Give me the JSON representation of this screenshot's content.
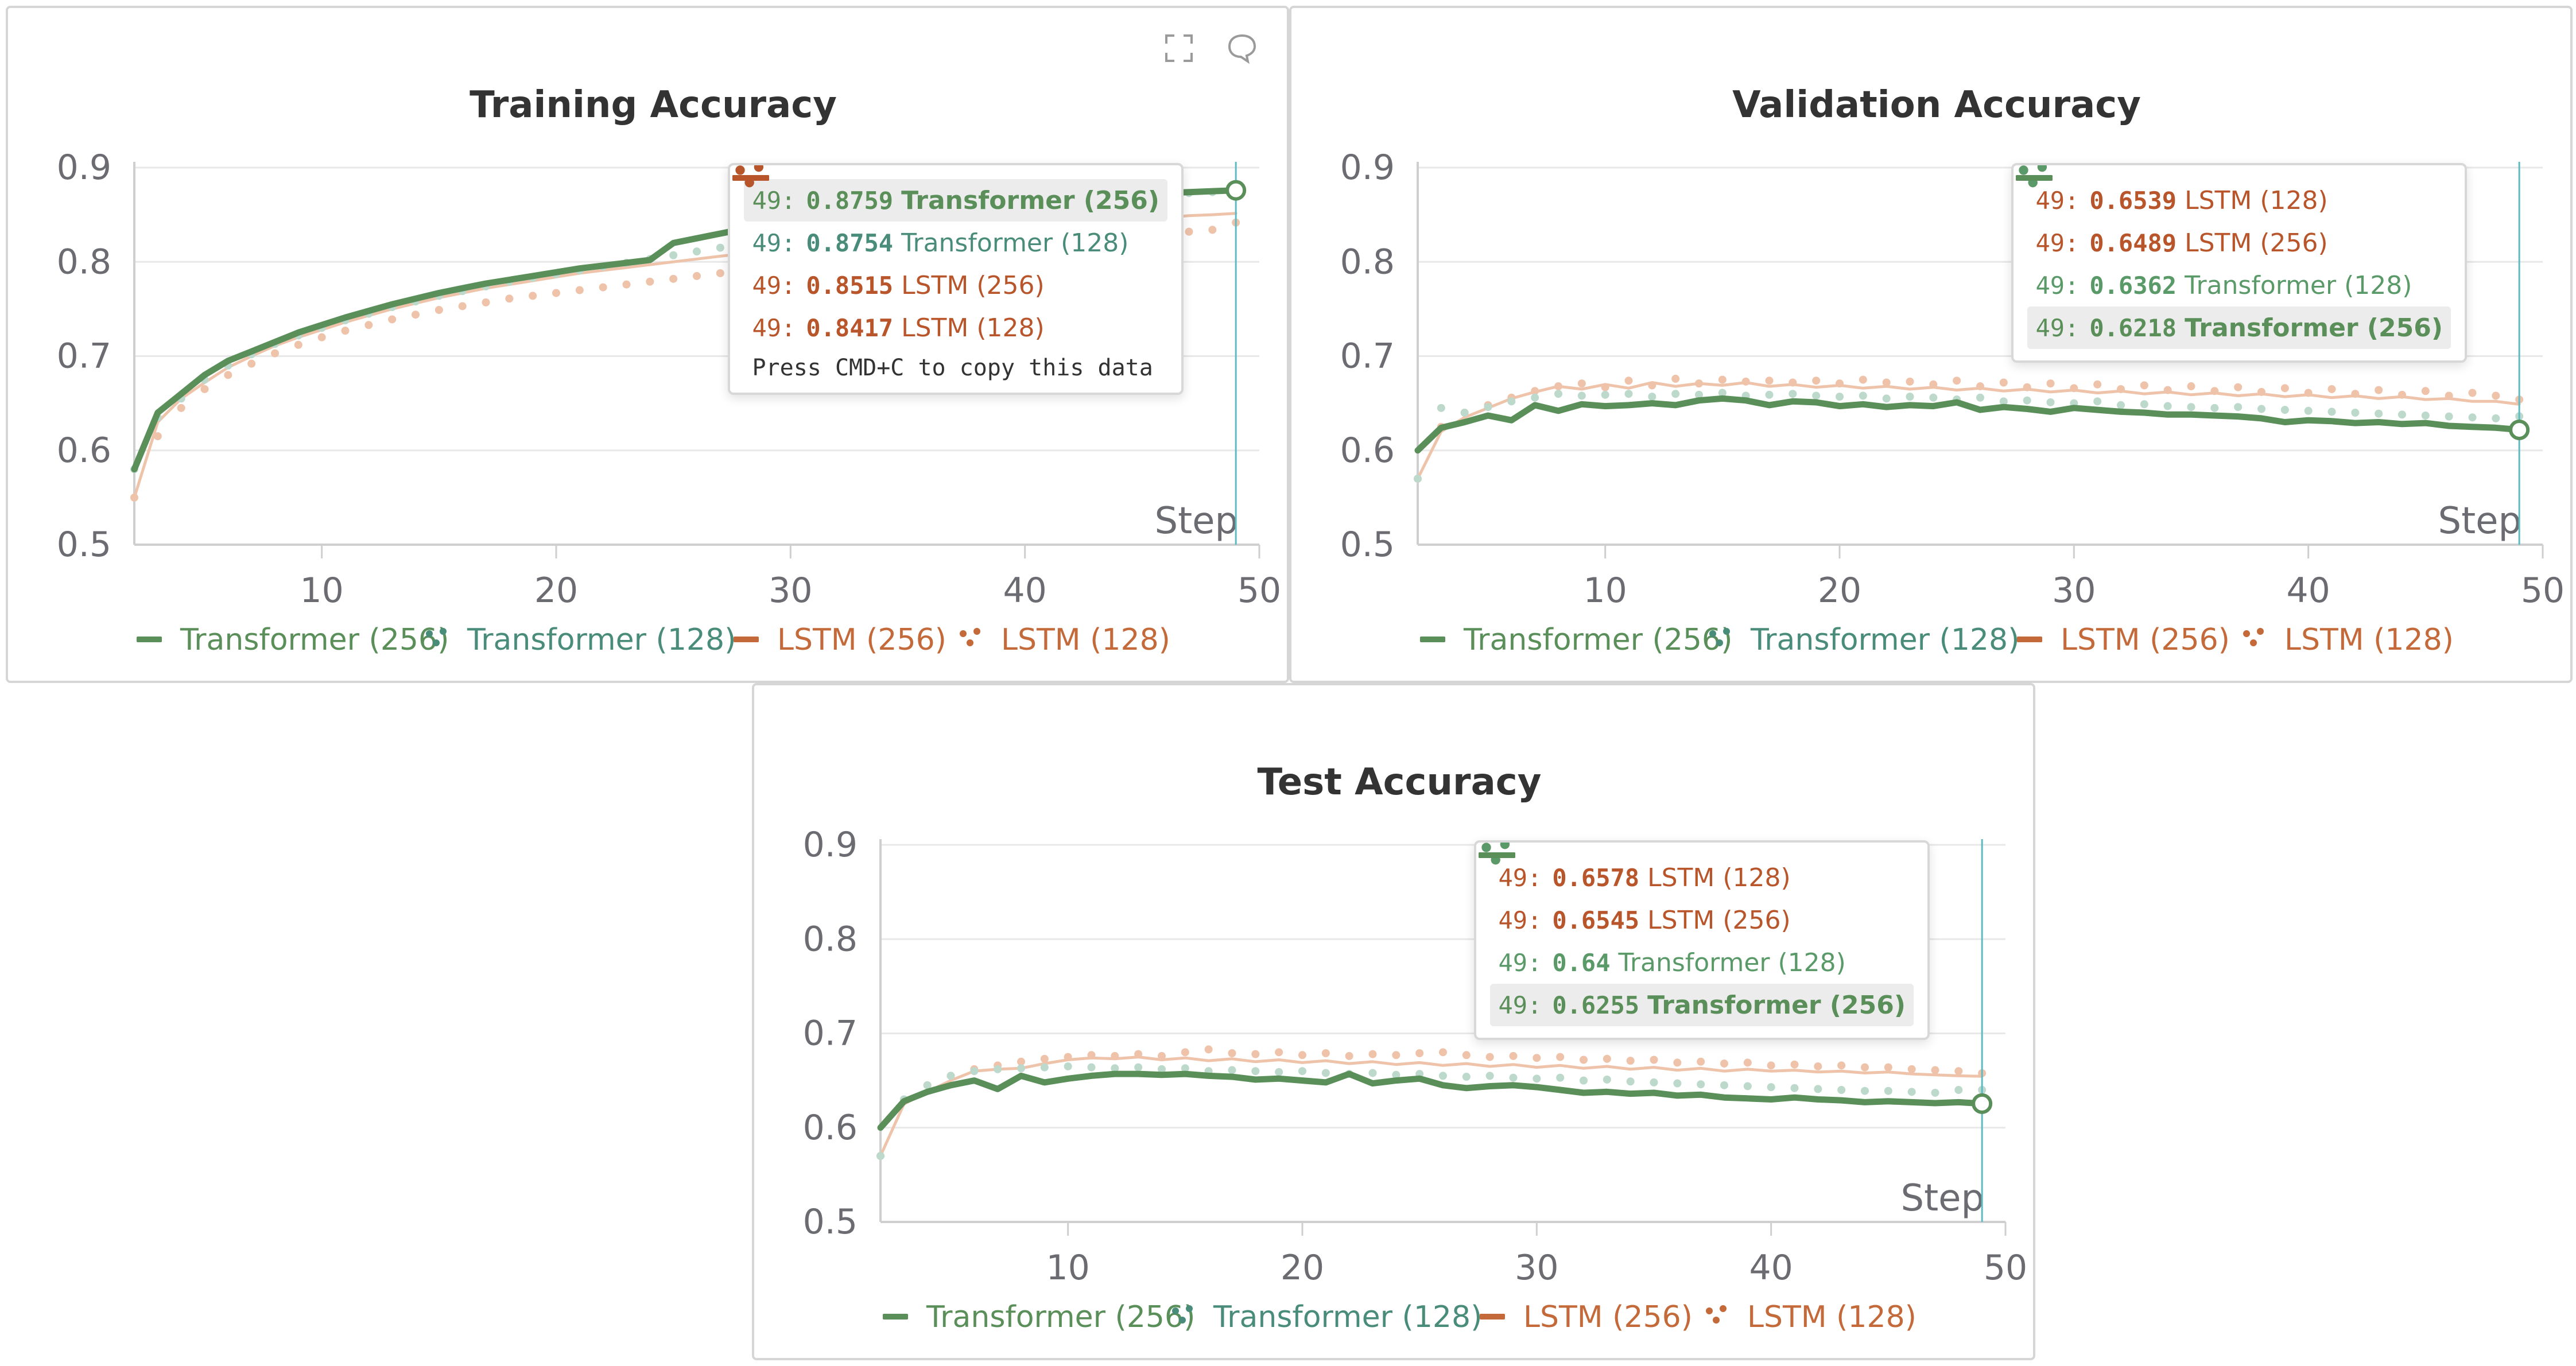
{
  "legend": [
    "Transformer (256)",
    "Transformer (128)",
    "LSTM (256)",
    "LSTM (128)"
  ],
  "tooltip_hint": "Press CMD+C to copy this data",
  "colors": {
    "transformer_256": "#5a8f5a",
    "transformer_128_train": "#4a8c7a",
    "transformer_128": "#5a9a68",
    "lstm_256": "#b8552a",
    "lstm_128": "#c46a3a",
    "transformer_256_faded": "#b9d3b9",
    "transformer_128_faded": "#bcd9cc",
    "lstm_faded": "#eec3aa",
    "step_line": "#5bbcc4"
  },
  "icons": [
    "fullscreen-icon",
    "comment-icon"
  ],
  "chart_data": [
    {
      "type": "line",
      "title": "Training Accuracy",
      "xlabel": "Step",
      "ylabel": "",
      "xlim": [
        2,
        50
      ],
      "ylim": [
        0.5,
        0.9
      ],
      "xticks": [
        "10",
        "20",
        "30",
        "40",
        "50"
      ],
      "yticks": [
        "0.5",
        "0.6",
        "0.7",
        "0.8",
        "0.9"
      ],
      "grid": true,
      "legend_position": "bottom",
      "hover_step": 49,
      "series": [
        {
          "name": "Transformer (256)",
          "style": "line",
          "values": [
            0.58,
            0.64,
            0.66,
            0.68,
            0.695,
            0.705,
            0.715,
            0.725,
            0.733,
            0.741,
            0.748,
            0.755,
            0.761,
            0.767,
            0.772,
            0.777,
            0.781,
            0.785,
            0.789,
            0.793,
            0.796,
            0.799,
            0.802,
            0.82,
            0.825,
            0.83,
            0.835,
            0.84,
            0.845,
            0.85,
            0.853,
            0.856,
            0.858,
            0.86,
            0.862,
            0.863,
            0.865,
            0.866,
            0.867,
            0.868,
            0.869,
            0.87,
            0.871,
            0.872,
            0.873,
            0.874,
            0.875,
            0.8759
          ]
        },
        {
          "name": "Transformer (128)",
          "style": "dotted",
          "values": [
            0.58,
            0.635,
            0.655,
            0.675,
            0.69,
            0.702,
            0.713,
            0.722,
            0.73,
            0.738,
            0.745,
            0.752,
            0.758,
            0.764,
            0.769,
            0.774,
            0.779,
            0.783,
            0.787,
            0.791,
            0.795,
            0.799,
            0.803,
            0.807,
            0.811,
            0.815,
            0.819,
            0.823,
            0.827,
            0.831,
            0.835,
            0.839,
            0.843,
            0.846,
            0.849,
            0.852,
            0.855,
            0.858,
            0.861,
            0.864,
            0.866,
            0.868,
            0.87,
            0.871,
            0.872,
            0.873,
            0.874,
            0.8754
          ]
        },
        {
          "name": "LSTM (256)",
          "style": "line",
          "values": [
            0.55,
            0.63,
            0.655,
            0.672,
            0.688,
            0.7,
            0.711,
            0.72,
            0.728,
            0.736,
            0.743,
            0.75,
            0.756,
            0.762,
            0.767,
            0.772,
            0.776,
            0.78,
            0.784,
            0.788,
            0.791,
            0.794,
            0.797,
            0.8,
            0.803,
            0.806,
            0.809,
            0.812,
            0.815,
            0.817,
            0.819,
            0.821,
            0.823,
            0.825,
            0.827,
            0.829,
            0.831,
            0.833,
            0.835,
            0.837,
            0.839,
            0.841,
            0.843,
            0.845,
            0.847,
            0.849,
            0.85,
            0.8515
          ]
        },
        {
          "name": "LSTM (128)",
          "style": "dotted",
          "values": [
            0.55,
            0.615,
            0.645,
            0.665,
            0.68,
            0.692,
            0.703,
            0.712,
            0.72,
            0.727,
            0.733,
            0.739,
            0.744,
            0.749,
            0.753,
            0.757,
            0.761,
            0.764,
            0.767,
            0.77,
            0.773,
            0.776,
            0.779,
            0.782,
            0.785,
            0.788,
            0.791,
            0.794,
            0.797,
            0.8,
            0.802,
            0.804,
            0.806,
            0.808,
            0.81,
            0.812,
            0.814,
            0.816,
            0.818,
            0.82,
            0.822,
            0.824,
            0.826,
            0.828,
            0.83,
            0.832,
            0.834,
            0.8417
          ]
        }
      ],
      "tooltip": {
        "rows": [
          {
            "series": "Transformer (256)",
            "step": "49",
            "value": "0.8759",
            "highlight": true
          },
          {
            "series": "Transformer (128)",
            "step": "49",
            "value": "0.8754",
            "highlight": false
          },
          {
            "series": "LSTM (256)",
            "step": "49",
            "value": "0.8515",
            "highlight": false
          },
          {
            "series": "LSTM (128)",
            "step": "49",
            "value": "0.8417",
            "highlight": false
          }
        ],
        "show_hint": true
      }
    },
    {
      "type": "line",
      "title": "Validation Accuracy",
      "xlabel": "Step",
      "ylabel": "",
      "xlim": [
        2,
        50
      ],
      "ylim": [
        0.5,
        0.9
      ],
      "xticks": [
        "10",
        "20",
        "30",
        "40",
        "50"
      ],
      "yticks": [
        "0.5",
        "0.6",
        "0.7",
        "0.8",
        "0.9"
      ],
      "grid": true,
      "legend_position": "bottom",
      "hover_step": 49,
      "series": [
        {
          "name": "Transformer (256)",
          "style": "line",
          "values": [
            0.6,
            0.624,
            0.63,
            0.637,
            0.632,
            0.648,
            0.642,
            0.649,
            0.647,
            0.648,
            0.65,
            0.648,
            0.653,
            0.655,
            0.653,
            0.648,
            0.652,
            0.651,
            0.647,
            0.649,
            0.646,
            0.648,
            0.647,
            0.651,
            0.643,
            0.646,
            0.644,
            0.641,
            0.645,
            0.643,
            0.641,
            0.64,
            0.638,
            0.638,
            0.637,
            0.636,
            0.634,
            0.63,
            0.632,
            0.631,
            0.629,
            0.63,
            0.628,
            0.629,
            0.626,
            0.625,
            0.624,
            0.6218
          ]
        },
        {
          "name": "Transformer (128)",
          "style": "dotted",
          "values": [
            0.57,
            0.645,
            0.64,
            0.646,
            0.652,
            0.656,
            0.66,
            0.658,
            0.659,
            0.66,
            0.657,
            0.66,
            0.659,
            0.661,
            0.658,
            0.659,
            0.66,
            0.658,
            0.657,
            0.658,
            0.655,
            0.657,
            0.656,
            0.654,
            0.656,
            0.652,
            0.653,
            0.651,
            0.65,
            0.652,
            0.648,
            0.649,
            0.647,
            0.646,
            0.645,
            0.646,
            0.644,
            0.643,
            0.642,
            0.641,
            0.64,
            0.639,
            0.638,
            0.637,
            0.636,
            0.635,
            0.634,
            0.6362
          ]
        },
        {
          "name": "LSTM (256)",
          "style": "line",
          "values": [
            0.57,
            0.62,
            0.635,
            0.645,
            0.655,
            0.662,
            0.668,
            0.665,
            0.67,
            0.666,
            0.672,
            0.668,
            0.671,
            0.669,
            0.672,
            0.668,
            0.67,
            0.667,
            0.669,
            0.666,
            0.668,
            0.665,
            0.667,
            0.664,
            0.666,
            0.663,
            0.665,
            0.662,
            0.664,
            0.661,
            0.663,
            0.66,
            0.662,
            0.659,
            0.661,
            0.658,
            0.66,
            0.657,
            0.659,
            0.656,
            0.658,
            0.655,
            0.657,
            0.654,
            0.655,
            0.652,
            0.652,
            0.6489
          ]
        },
        {
          "name": "LSTM (128)",
          "style": "dotted",
          "values": [
            0.57,
            0.625,
            0.64,
            0.648,
            0.656,
            0.663,
            0.668,
            0.671,
            0.667,
            0.674,
            0.669,
            0.676,
            0.671,
            0.675,
            0.673,
            0.674,
            0.672,
            0.674,
            0.671,
            0.675,
            0.672,
            0.673,
            0.67,
            0.674,
            0.668,
            0.672,
            0.667,
            0.671,
            0.666,
            0.67,
            0.665,
            0.669,
            0.664,
            0.668,
            0.663,
            0.667,
            0.662,
            0.666,
            0.661,
            0.665,
            0.66,
            0.664,
            0.659,
            0.663,
            0.658,
            0.661,
            0.658,
            0.6539
          ]
        }
      ],
      "tooltip": {
        "rows": [
          {
            "series": "LSTM (128)",
            "step": "49",
            "value": "0.6539",
            "highlight": false
          },
          {
            "series": "LSTM (256)",
            "step": "49",
            "value": "0.6489",
            "highlight": false
          },
          {
            "series": "Transformer (128)",
            "step": "49",
            "value": "0.6362",
            "highlight": false
          },
          {
            "series": "Transformer (256)",
            "step": "49",
            "value": "0.6218",
            "highlight": true
          }
        ],
        "show_hint": false
      }
    },
    {
      "type": "line",
      "title": "Test Accuracy",
      "xlabel": "Step",
      "ylabel": "",
      "xlim": [
        2,
        50
      ],
      "ylim": [
        0.5,
        0.9
      ],
      "xticks": [
        "10",
        "20",
        "30",
        "40",
        "50"
      ],
      "yticks": [
        "0.5",
        "0.6",
        "0.7",
        "0.8",
        "0.9"
      ],
      "grid": true,
      "legend_position": "bottom",
      "hover_step": 49,
      "series": [
        {
          "name": "Transformer (256)",
          "style": "line",
          "values": [
            0.6,
            0.628,
            0.638,
            0.645,
            0.65,
            0.641,
            0.655,
            0.648,
            0.652,
            0.655,
            0.657,
            0.657,
            0.656,
            0.657,
            0.655,
            0.654,
            0.651,
            0.652,
            0.65,
            0.648,
            0.657,
            0.647,
            0.65,
            0.652,
            0.645,
            0.642,
            0.644,
            0.645,
            0.643,
            0.64,
            0.637,
            0.638,
            0.636,
            0.637,
            0.634,
            0.635,
            0.632,
            0.631,
            0.63,
            0.632,
            0.63,
            0.629,
            0.627,
            0.628,
            0.627,
            0.626,
            0.627,
            0.6255
          ]
        },
        {
          "name": "Transformer (128)",
          "style": "dotted",
          "values": [
            0.57,
            0.63,
            0.645,
            0.655,
            0.66,
            0.662,
            0.663,
            0.664,
            0.665,
            0.664,
            0.663,
            0.664,
            0.662,
            0.663,
            0.66,
            0.661,
            0.66,
            0.659,
            0.66,
            0.658,
            0.657,
            0.658,
            0.656,
            0.657,
            0.655,
            0.654,
            0.655,
            0.653,
            0.652,
            0.653,
            0.65,
            0.651,
            0.649,
            0.648,
            0.647,
            0.646,
            0.645,
            0.644,
            0.643,
            0.642,
            0.641,
            0.64,
            0.639,
            0.639,
            0.638,
            0.637,
            0.64,
            0.64
          ]
        },
        {
          "name": "LSTM (256)",
          "style": "line",
          "values": [
            0.57,
            0.625,
            0.638,
            0.65,
            0.66,
            0.662,
            0.663,
            0.668,
            0.672,
            0.674,
            0.673,
            0.675,
            0.672,
            0.674,
            0.671,
            0.673,
            0.67,
            0.672,
            0.669,
            0.671,
            0.668,
            0.67,
            0.667,
            0.669,
            0.666,
            0.668,
            0.665,
            0.667,
            0.664,
            0.666,
            0.663,
            0.665,
            0.662,
            0.664,
            0.661,
            0.663,
            0.66,
            0.662,
            0.66,
            0.661,
            0.659,
            0.66,
            0.658,
            0.659,
            0.657,
            0.656,
            0.655,
            0.6545
          ]
        },
        {
          "name": "LSTM (128)",
          "style": "dotted",
          "values": [
            0.57,
            0.628,
            0.645,
            0.655,
            0.662,
            0.666,
            0.67,
            0.673,
            0.675,
            0.677,
            0.676,
            0.678,
            0.676,
            0.68,
            0.683,
            0.679,
            0.678,
            0.68,
            0.677,
            0.679,
            0.676,
            0.678,
            0.677,
            0.679,
            0.68,
            0.677,
            0.675,
            0.676,
            0.674,
            0.675,
            0.672,
            0.673,
            0.671,
            0.672,
            0.669,
            0.67,
            0.668,
            0.669,
            0.666,
            0.667,
            0.665,
            0.666,
            0.664,
            0.664,
            0.662,
            0.661,
            0.66,
            0.6578
          ]
        }
      ],
      "tooltip": {
        "rows": [
          {
            "series": "LSTM (128)",
            "step": "49",
            "value": "0.6578",
            "highlight": false
          },
          {
            "series": "LSTM (256)",
            "step": "49",
            "value": "0.6545",
            "highlight": false
          },
          {
            "series": "Transformer (128)",
            "step": "49",
            "value": "0.64",
            "highlight": false
          },
          {
            "series": "Transformer (256)",
            "step": "49",
            "value": "0.6255",
            "highlight": true
          }
        ],
        "show_hint": false
      }
    }
  ]
}
